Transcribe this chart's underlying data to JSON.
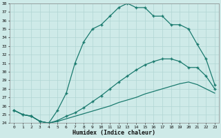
{
  "xlabel": "Humidex (Indice chaleur)",
  "x": [
    0,
    1,
    2,
    3,
    4,
    5,
    6,
    7,
    8,
    9,
    10,
    11,
    12,
    13,
    14,
    15,
    16,
    17,
    18,
    19,
    20,
    21,
    22,
    23
  ],
  "line_max": [
    25.5,
    25.0,
    24.8,
    24.2,
    24.0,
    25.5,
    27.5,
    31.0,
    33.5,
    35.0,
    35.5,
    36.5,
    37.5,
    38.0,
    37.5,
    37.5,
    36.5,
    36.5,
    35.5,
    35.5,
    35.0,
    33.2,
    31.5,
    28.5
  ],
  "line_mid": [
    25.5,
    25.0,
    24.8,
    24.2,
    24.0,
    24.3,
    24.8,
    25.2,
    25.8,
    26.5,
    27.2,
    28.0,
    28.8,
    29.5,
    30.2,
    30.8,
    31.2,
    31.5,
    31.5,
    31.2,
    30.5,
    30.5,
    29.5,
    28.0
  ],
  "line_low": [
    25.5,
    25.0,
    24.8,
    24.2,
    24.0,
    24.2,
    24.5,
    24.8,
    25.1,
    25.4,
    25.7,
    26.0,
    26.4,
    26.7,
    27.0,
    27.4,
    27.7,
    28.0,
    28.3,
    28.6,
    28.8,
    28.5,
    28.0,
    27.5
  ],
  "ylim": [
    24,
    38
  ],
  "yticks": [
    24,
    25,
    26,
    27,
    28,
    29,
    30,
    31,
    32,
    33,
    34,
    35,
    36,
    37,
    38
  ],
  "xticks": [
    0,
    1,
    2,
    3,
    4,
    5,
    6,
    7,
    8,
    9,
    10,
    11,
    12,
    13,
    14,
    15,
    16,
    17,
    18,
    19,
    20,
    21,
    22,
    23
  ],
  "line_color": "#1a7a6e",
  "bg_color": "#ceeae8",
  "grid_color": "#b0d5d3"
}
